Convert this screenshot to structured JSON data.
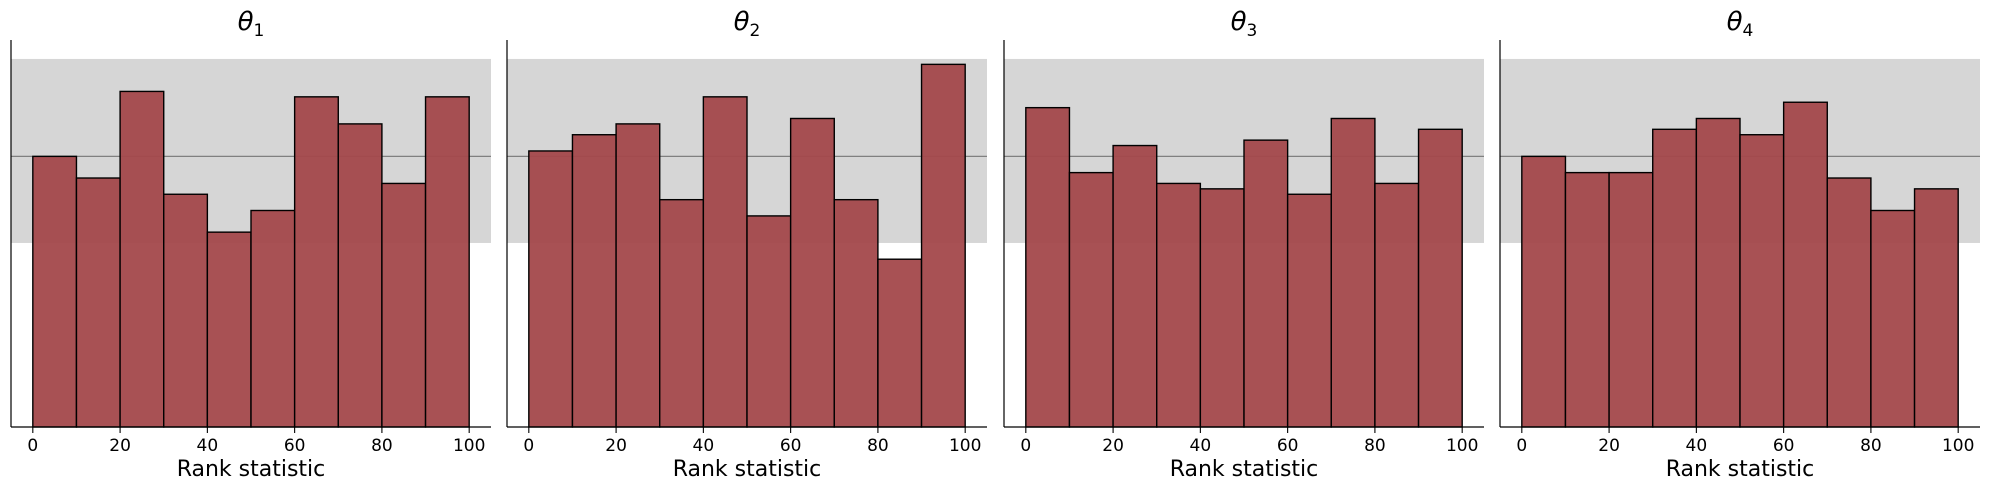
{
  "figure": {
    "bar_color": "#a3484b",
    "bar_edge_color": "#000000",
    "band_color": "#d6d6d6",
    "reference_line_color": "#808080"
  },
  "chart_data": [
    {
      "type": "bar",
      "title_base": "θ",
      "title_sub": "1",
      "xlabel": "Rank statistic",
      "ylabel": "",
      "bin_edges": [
        0,
        10,
        20,
        30,
        40,
        50,
        60,
        70,
        80,
        90,
        100
      ],
      "values": [
        50,
        46,
        62,
        43,
        36,
        40,
        61,
        56,
        45,
        61
      ],
      "xlim": [
        -5,
        105
      ],
      "ylim": [
        0,
        71.5
      ],
      "xticks": [
        0,
        20,
        40,
        60,
        80,
        100
      ],
      "band": [
        34,
        68
      ],
      "reference_line": 50
    },
    {
      "type": "bar",
      "title_base": "θ",
      "title_sub": "2",
      "xlabel": "Rank statistic",
      "ylabel": "",
      "bin_edges": [
        0,
        10,
        20,
        30,
        40,
        50,
        60,
        70,
        80,
        90,
        100
      ],
      "values": [
        51,
        54,
        56,
        42,
        61,
        39,
        57,
        42,
        31,
        67
      ],
      "xlim": [
        -5,
        105
      ],
      "ylim": [
        0,
        71.5
      ],
      "xticks": [
        0,
        20,
        40,
        60,
        80,
        100
      ],
      "band": [
        34,
        68
      ],
      "reference_line": 50
    },
    {
      "type": "bar",
      "title_base": "θ",
      "title_sub": "3",
      "xlabel": "Rank statistic",
      "ylabel": "",
      "bin_edges": [
        0,
        10,
        20,
        30,
        40,
        50,
        60,
        70,
        80,
        90,
        100
      ],
      "values": [
        59,
        47,
        52,
        45,
        44,
        53,
        43,
        57,
        45,
        55
      ],
      "xlim": [
        -5,
        105
      ],
      "ylim": [
        0,
        71.5
      ],
      "xticks": [
        0,
        20,
        40,
        60,
        80,
        100
      ],
      "band": [
        34,
        68
      ],
      "reference_line": 50
    },
    {
      "type": "bar",
      "title_base": "θ",
      "title_sub": "4",
      "xlabel": "Rank statistic",
      "ylabel": "",
      "bin_edges": [
        0,
        10,
        20,
        30,
        40,
        50,
        60,
        70,
        80,
        90,
        100
      ],
      "values": [
        50,
        47,
        47,
        55,
        57,
        54,
        60,
        46,
        40,
        44
      ],
      "xlim": [
        -5,
        105
      ],
      "ylim": [
        0,
        71.5
      ],
      "xticks": [
        0,
        20,
        40,
        60,
        80,
        100
      ],
      "band": [
        34,
        68
      ],
      "reference_line": 50
    }
  ]
}
